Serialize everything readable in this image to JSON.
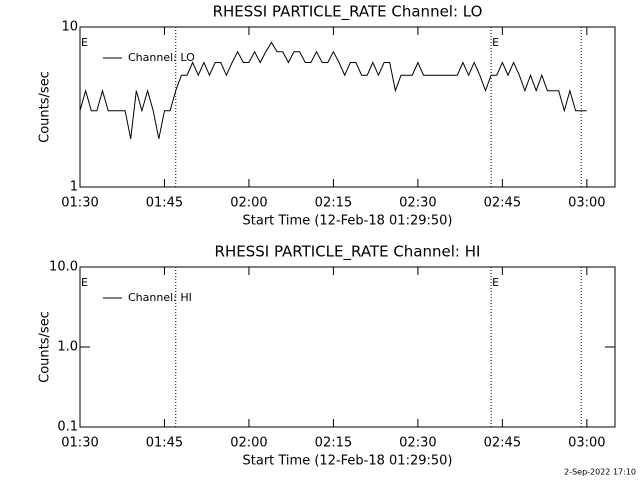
{
  "chart_data": [
    {
      "type": "line",
      "title": "RHESSI PARTICLE_RATE Channel: LO",
      "x_label": "Start Time (12-Feb-18 01:29:50)",
      "y_label": "Counts/sec",
      "log_y": true,
      "legend": "upper left",
      "color": "#000000",
      "xlim": [
        "01:30",
        "03:05"
      ],
      "xticks": [
        "01:30",
        "01:45",
        "02:00",
        "02:15",
        "02:30",
        "02:45",
        "03:00"
      ],
      "ylim": [
        1,
        10
      ],
      "yticks": [
        1,
        10
      ],
      "vlines": [
        "01:47",
        "02:43",
        "02:59"
      ],
      "annotations": [
        {
          "x": "01:30",
          "label": "E"
        },
        {
          "x": "02:43",
          "label": "E"
        }
      ],
      "x": [
        "01:30",
        "01:31",
        "01:32",
        "01:33",
        "01:34",
        "01:35",
        "01:36",
        "01:37",
        "01:38",
        "01:39",
        "01:40",
        "01:41",
        "01:42",
        "01:43",
        "01:44",
        "01:45",
        "01:46",
        "01:47",
        "01:48",
        "01:49",
        "01:50",
        "01:51",
        "01:52",
        "01:53",
        "01:54",
        "01:55",
        "01:56",
        "01:57",
        "01:58",
        "01:59",
        "02:00",
        "02:01",
        "02:02",
        "02:03",
        "02:04",
        "02:05",
        "02:06",
        "02:07",
        "02:08",
        "02:09",
        "02:10",
        "02:11",
        "02:12",
        "02:13",
        "02:14",
        "02:15",
        "02:16",
        "02:17",
        "02:18",
        "02:19",
        "02:20",
        "02:21",
        "02:22",
        "02:23",
        "02:24",
        "02:25",
        "02:26",
        "02:27",
        "02:28",
        "02:29",
        "02:30",
        "02:31",
        "02:32",
        "02:33",
        "02:34",
        "02:35",
        "02:36",
        "02:37",
        "02:38",
        "02:39",
        "02:40",
        "02:41",
        "02:42",
        "02:43",
        "02:44",
        "02:45",
        "02:46",
        "02:47",
        "02:48",
        "02:49",
        "02:50",
        "02:51",
        "02:52",
        "02:53",
        "02:54",
        "02:55",
        "02:56",
        "02:57",
        "02:58",
        "02:59",
        "03:00"
      ],
      "series": [
        {
          "name": "Channel: LO",
          "color": "#000000",
          "values": [
            3,
            4,
            3,
            3,
            4,
            3,
            3,
            3,
            3,
            2,
            4,
            3,
            4,
            3,
            2,
            3,
            3,
            4,
            5,
            5,
            6,
            5,
            6,
            5,
            6,
            6,
            5,
            6,
            7,
            6,
            6,
            7,
            6,
            7,
            8,
            7,
            7,
            6,
            7,
            7,
            6,
            6,
            7,
            6,
            6,
            7,
            6,
            5,
            6,
            6,
            5,
            5,
            6,
            5,
            6,
            6,
            4,
            5,
            5,
            5,
            6,
            5,
            5,
            5,
            5,
            5,
            5,
            5,
            6,
            5,
            6,
            5,
            4,
            5,
            5,
            6,
            5,
            6,
            5,
            4,
            5,
            4,
            5,
            4,
            4,
            4,
            3,
            4,
            3,
            3,
            3
          ]
        }
      ]
    },
    {
      "type": "line",
      "title": "RHESSI PARTICLE_RATE Channel: HI",
      "x_label": "Start Time (12-Feb-18 01:29:50)",
      "y_label": "Counts/sec",
      "log_y": true,
      "legend": "upper left",
      "color": "#000000",
      "xlim": [
        "01:30",
        "03:05"
      ],
      "xticks": [
        "01:30",
        "01:45",
        "02:00",
        "02:15",
        "02:30",
        "02:45",
        "03:00"
      ],
      "ylim": [
        0.1,
        10
      ],
      "yticks": [
        {
          "value": 0.1,
          "label": "0.1"
        },
        {
          "value": 1,
          "label": "1.0"
        },
        {
          "value": 10,
          "label": "10.0"
        }
      ],
      "vlines": [
        "01:47",
        "02:43",
        "02:59"
      ],
      "annotations": [
        {
          "x": "01:30",
          "label": "E"
        },
        {
          "x": "02:43",
          "label": "E"
        }
      ],
      "x": [],
      "series": [
        {
          "name": "Channel: HI",
          "color": "#000000",
          "values": []
        }
      ]
    }
  ],
  "footer": "2-Sep-2022 17:10"
}
